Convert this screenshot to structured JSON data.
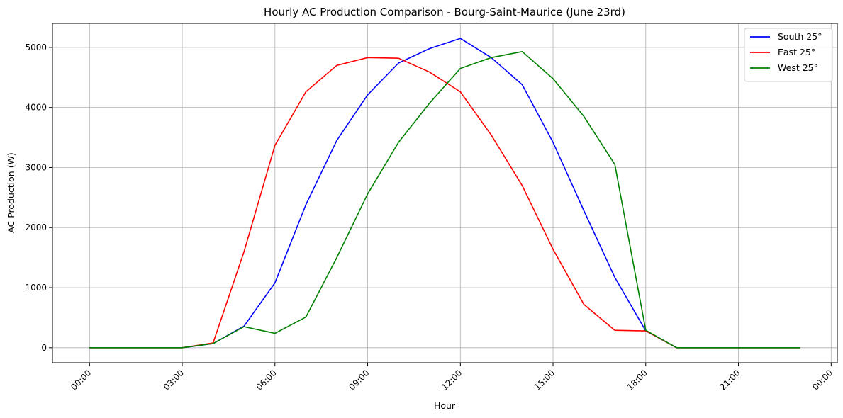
{
  "chart_data": {
    "type": "line",
    "title": "Hourly AC Production Comparison - Bourg-Saint-Maurice (June 23rd)",
    "xlabel": "Hour",
    "ylabel": "AC Production (W)",
    "x": [
      0,
      1,
      2,
      3,
      4,
      5,
      6,
      7,
      8,
      9,
      10,
      11,
      12,
      13,
      14,
      15,
      16,
      17,
      18,
      19,
      20,
      21,
      22,
      23
    ],
    "xlim": [
      -1.2,
      24.2
    ],
    "ylim": [
      -250,
      5400
    ],
    "x_ticks": [
      {
        "value": 0,
        "label": "00:00"
      },
      {
        "value": 3,
        "label": "03:00"
      },
      {
        "value": 6,
        "label": "06:00"
      },
      {
        "value": 9,
        "label": "09:00"
      },
      {
        "value": 12,
        "label": "12:00"
      },
      {
        "value": 15,
        "label": "15:00"
      },
      {
        "value": 18,
        "label": "18:00"
      },
      {
        "value": 21,
        "label": "21:00"
      },
      {
        "value": 24,
        "label": "00:00"
      }
    ],
    "y_ticks": [
      {
        "value": 0,
        "label": "0"
      },
      {
        "value": 1000,
        "label": "1000"
      },
      {
        "value": 2000,
        "label": "2000"
      },
      {
        "value": 3000,
        "label": "3000"
      },
      {
        "value": 4000,
        "label": "4000"
      },
      {
        "value": 5000,
        "label": "5000"
      }
    ],
    "grid": true,
    "legend_position": "top-right",
    "series": [
      {
        "name": "South 25°",
        "color": "#0000ff",
        "values": [
          0,
          0,
          0,
          0,
          70,
          360,
          1080,
          2380,
          3450,
          4210,
          4740,
          4980,
          5150,
          4830,
          4380,
          3420,
          2280,
          1170,
          280,
          0,
          0,
          0,
          0,
          0
        ]
      },
      {
        "name": "East 25°",
        "color": "#ff0000",
        "values": [
          0,
          0,
          0,
          0,
          80,
          1600,
          3370,
          4260,
          4700,
          4830,
          4820,
          4590,
          4260,
          3540,
          2700,
          1640,
          720,
          290,
          280,
          0,
          0,
          0,
          0,
          0
        ]
      },
      {
        "name": "West 25°",
        "color": "#008000",
        "values": [
          0,
          0,
          0,
          0,
          70,
          350,
          240,
          510,
          1500,
          2560,
          3420,
          4070,
          4650,
          4830,
          4930,
          4480,
          3850,
          3050,
          290,
          0,
          0,
          0,
          0,
          0
        ]
      }
    ]
  }
}
